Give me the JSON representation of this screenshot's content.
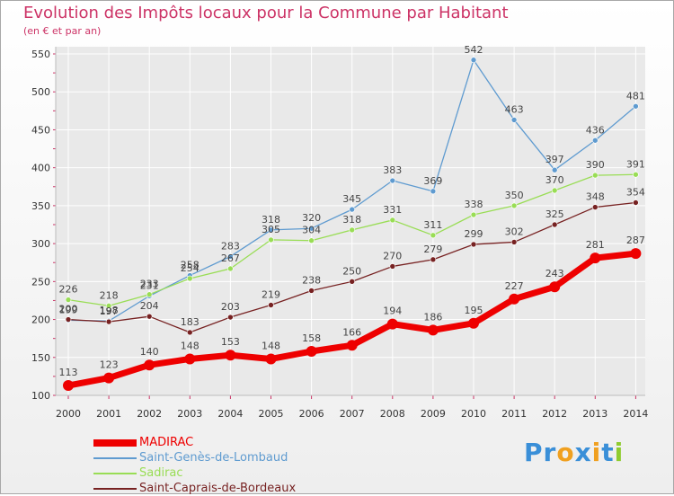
{
  "colors": {
    "MADIRAC": "#ee0000",
    "Saint-Genès-de-Lombaud": "#5f9bd0",
    "Sadirac": "#99dd55",
    "Saint-Caprais-de-Bordeaux": "#772222",
    "title": "#cc3366",
    "grid": "#ffffff",
    "axis_text": "#333333"
  },
  "logo": {
    "text": "Proxiti",
    "letters": [
      "P",
      "r",
      "o",
      "x",
      "i",
      "t",
      "i"
    ],
    "letter_colors": [
      "#3a8fd8",
      "#3a8fd8",
      "#f0a020",
      "#3a8fd8",
      "#f0a020",
      "#3a8fd8",
      "#8fcc30"
    ]
  },
  "chart_data": {
    "type": "line",
    "title": "Evolution des Impôts locaux pour la Commune par Habitant",
    "subtitle": "(en € et par an)",
    "xlabel": "",
    "ylabel": "",
    "x": [
      2000,
      2001,
      2002,
      2003,
      2004,
      2005,
      2006,
      2007,
      2008,
      2009,
      2010,
      2011,
      2012,
      2013,
      2014
    ],
    "ylim": [
      100,
      550
    ],
    "yticks": [
      100,
      150,
      200,
      250,
      300,
      350,
      400,
      450,
      500,
      550
    ],
    "grid": true,
    "legend_position": "bottom-left",
    "series": [
      {
        "name": "Saint-Genès-de-Lombaud",
        "values": [
          199,
          198,
          231,
          258,
          283,
          318,
          320,
          345,
          383,
          369,
          542,
          463,
          397,
          436,
          481
        ]
      },
      {
        "name": "Sadirac",
        "values": [
          226,
          218,
          233,
          254,
          267,
          305,
          304,
          318,
          331,
          311,
          338,
          350,
          370,
          390,
          391
        ]
      },
      {
        "name": "Saint-Caprais-de-Bordeaux",
        "values": [
          200,
          197,
          204,
          183,
          203,
          219,
          238,
          250,
          270,
          279,
          299,
          302,
          325,
          348,
          354
        ]
      },
      {
        "name": "MADIRAC",
        "values": [
          113,
          123,
          140,
          148,
          153,
          148,
          158,
          166,
          194,
          186,
          195,
          227,
          243,
          281,
          287
        ]
      }
    ],
    "legend": [
      "MADIRAC",
      "Saint-Genès-de-Lombaud",
      "Sadirac",
      "Saint-Caprais-de-Bordeaux"
    ]
  }
}
